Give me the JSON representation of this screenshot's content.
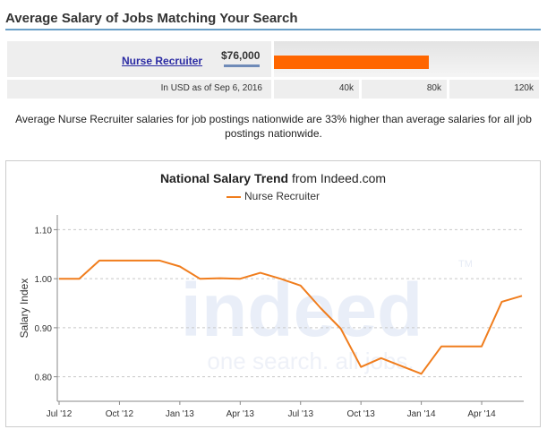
{
  "header": {
    "title": "Average Salary of Jobs Matching Your Search"
  },
  "salary_bar": {
    "job_title": "Nurse Recruiter",
    "salary": "$76,000",
    "salary_value": 76000,
    "axis_max": 130000,
    "as_of": "In USD as of Sep 6, 2016",
    "ticks": [
      "40k",
      "80k",
      "120k"
    ],
    "bar_color": "#ff6600"
  },
  "summary": "Average Nurse Recruiter salaries for job postings nationwide are 33% higher than average salaries for all job postings nationwide.",
  "chart_data": {
    "type": "line",
    "title_bold": "National Salary Trend",
    "title_rest": " from Indeed.com",
    "ylabel": "Salary Index",
    "xlabel": "",
    "ylim": [
      0.75,
      1.13
    ],
    "yticks": [
      "0.80",
      "0.90",
      "1.00",
      "1.10"
    ],
    "ytick_values": [
      0.8,
      0.9,
      1.0,
      1.1
    ],
    "x": [
      "Jul '12",
      "Aug '12",
      "Sep '12",
      "Oct '12",
      "Nov '12",
      "Dec '12",
      "Jan '13",
      "Feb '13",
      "Mar '13",
      "Apr '13",
      "May '13",
      "Jun '13",
      "Jul '13",
      "Aug '13",
      "Sep '13",
      "Oct '13",
      "Nov '13",
      "Dec '13",
      "Jan '14",
      "Feb '14",
      "Mar '14",
      "Apr '14",
      "May '14",
      "Jun '14"
    ],
    "xtick_labels": [
      "Jul '12",
      "Oct '12",
      "Jan '13",
      "Apr '13",
      "Jul '13",
      "Oct '13",
      "Jan '14",
      "Apr '14"
    ],
    "grid": true,
    "legend_position": "top",
    "series": [
      {
        "name": "Nurse Recruiter",
        "color": "#f07d1d",
        "values": [
          1.0,
          1.0,
          1.037,
          1.037,
          1.037,
          1.037,
          1.025,
          1.0,
          1.001,
          1.0,
          1.012,
          1.0,
          0.986,
          0.94,
          0.898,
          0.82,
          0.838,
          0.822,
          0.806,
          0.862,
          0.862,
          0.862,
          0.953,
          0.965
        ]
      }
    ],
    "watermark": {
      "brand": "indeed",
      "tagline": "one search. all jobs.",
      "mark": "TM"
    }
  }
}
